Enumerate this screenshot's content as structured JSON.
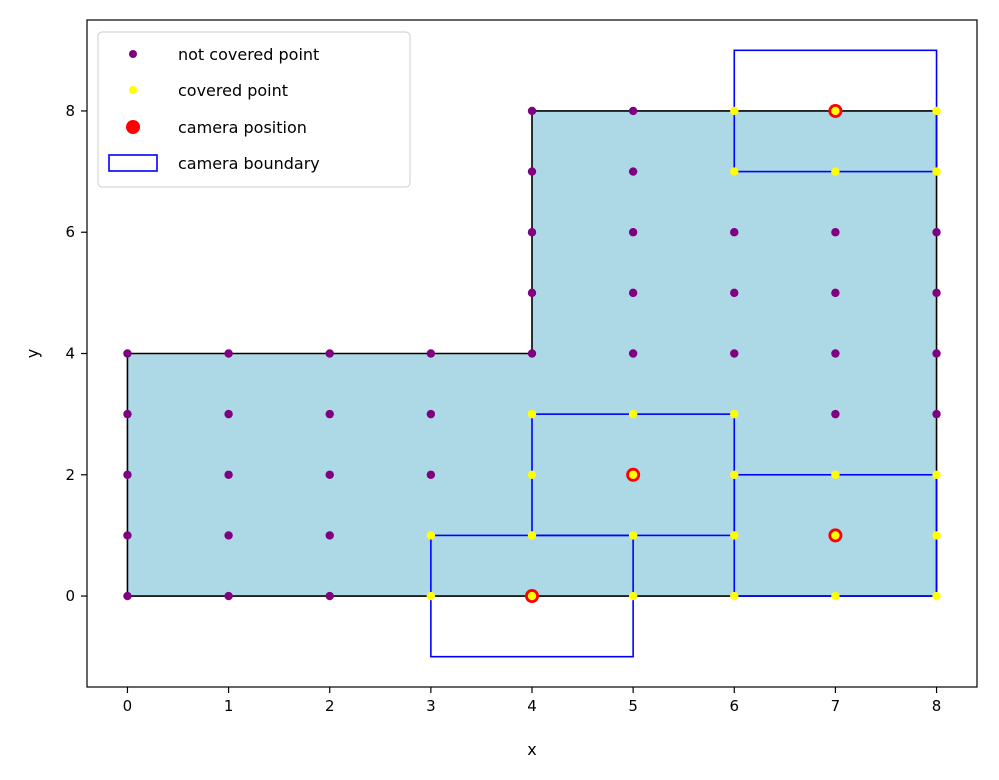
{
  "chart_data": {
    "type": "scatter",
    "xlabel": "x",
    "ylabel": "y",
    "xlim": [
      -0.4,
      8.4
    ],
    "ylim": [
      -1.5,
      9.5
    ],
    "xticks": [
      0,
      1,
      2,
      3,
      4,
      5,
      6,
      7,
      8
    ],
    "yticks": [
      0,
      2,
      4,
      6,
      8
    ],
    "grid": false,
    "legend_position": "upper-left",
    "colors": {
      "region_fill": "#add8e6",
      "region_edge": "#000000",
      "not_covered": "#800080",
      "covered": "#ffff00",
      "camera": "#ff0000",
      "camera_boundary": "#0000ff"
    },
    "legend": [
      {
        "key": "not_covered",
        "label": "not covered point"
      },
      {
        "key": "covered",
        "label": "covered point"
      },
      {
        "key": "camera",
        "label": "camera position"
      },
      {
        "key": "boundary",
        "label": "camera boundary"
      }
    ],
    "region": [
      [
        0,
        0
      ],
      [
        8,
        0
      ],
      [
        8,
        8
      ],
      [
        4,
        8
      ],
      [
        4,
        4
      ],
      [
        0,
        4
      ]
    ],
    "camera_boundaries": [
      {
        "x0": 3,
        "y0": -1,
        "x1": 5,
        "y1": 1
      },
      {
        "x0": 4,
        "y0": 1,
        "x1": 6,
        "y1": 3
      },
      {
        "x0": 6,
        "y0": 0,
        "x1": 8,
        "y1": 2
      },
      {
        "x0": 6,
        "y0": 7,
        "x1": 8,
        "y1": 9
      }
    ],
    "camera_positions": [
      [
        4,
        0
      ],
      [
        5,
        2
      ],
      [
        7,
        1
      ],
      [
        7,
        8
      ]
    ],
    "covered_points": [
      [
        3,
        0
      ],
      [
        4,
        0
      ],
      [
        5,
        0
      ],
      [
        6,
        0
      ],
      [
        7,
        0
      ],
      [
        8,
        0
      ],
      [
        3,
        1
      ],
      [
        4,
        1
      ],
      [
        5,
        1
      ],
      [
        6,
        1
      ],
      [
        7,
        1
      ],
      [
        8,
        1
      ],
      [
        4,
        2
      ],
      [
        5,
        2
      ],
      [
        6,
        2
      ],
      [
        7,
        2
      ],
      [
        8,
        2
      ],
      [
        4,
        3
      ],
      [
        5,
        3
      ],
      [
        6,
        3
      ],
      [
        6,
        7
      ],
      [
        7,
        7
      ],
      [
        8,
        7
      ],
      [
        6,
        8
      ],
      [
        7,
        8
      ],
      [
        8,
        8
      ]
    ],
    "not_covered_points": [
      [
        0,
        0
      ],
      [
        1,
        0
      ],
      [
        2,
        0
      ],
      [
        0,
        1
      ],
      [
        1,
        1
      ],
      [
        2,
        1
      ],
      [
        0,
        2
      ],
      [
        1,
        2
      ],
      [
        2,
        2
      ],
      [
        3,
        2
      ],
      [
        0,
        3
      ],
      [
        1,
        3
      ],
      [
        2,
        3
      ],
      [
        3,
        3
      ],
      [
        7,
        3
      ],
      [
        8,
        3
      ],
      [
        0,
        4
      ],
      [
        1,
        4
      ],
      [
        2,
        4
      ],
      [
        3,
        4
      ],
      [
        4,
        4
      ],
      [
        5,
        4
      ],
      [
        6,
        4
      ],
      [
        7,
        4
      ],
      [
        8,
        4
      ],
      [
        4,
        5
      ],
      [
        5,
        5
      ],
      [
        6,
        5
      ],
      [
        7,
        5
      ],
      [
        8,
        5
      ],
      [
        4,
        6
      ],
      [
        5,
        6
      ],
      [
        6,
        6
      ],
      [
        7,
        6
      ],
      [
        8,
        6
      ],
      [
        4,
        7
      ],
      [
        5,
        7
      ],
      [
        4,
        8
      ],
      [
        5,
        8
      ]
    ]
  }
}
